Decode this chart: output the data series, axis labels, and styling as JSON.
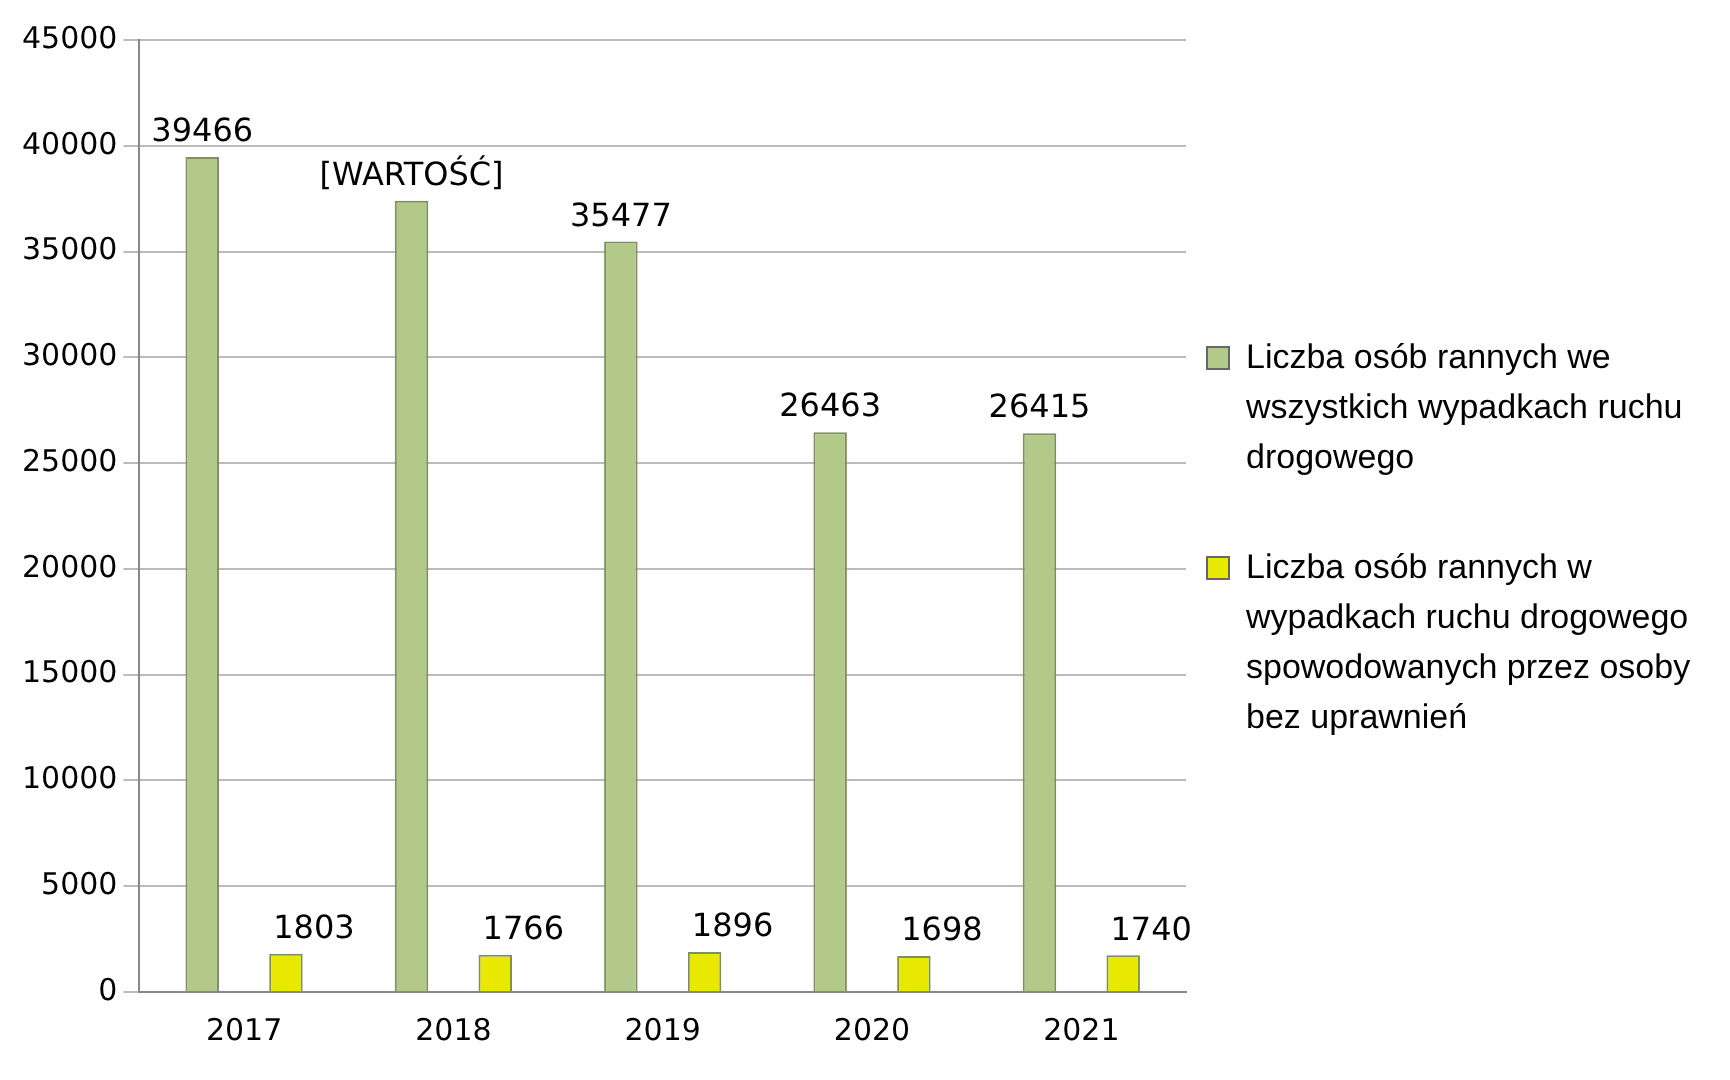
{
  "chart_data": {
    "type": "bar",
    "categories": [
      "2017",
      "2018",
      "2019",
      "2020",
      "2021"
    ],
    "series": [
      {
        "name": "Liczba osób rannych we wszystkich wypadkach ruchu drogowego",
        "color": "#b3c98a",
        "values": [
          39466,
          37400,
          35477,
          26463,
          26415
        ],
        "value_labels": [
          "39466",
          "[WARTOŚĆ]",
          "35477",
          "26463",
          "26415"
        ]
      },
      {
        "name": "Liczba osób rannych w wypadkach ruchu drogowego spowodowanych przez osoby bez uprawnień",
        "color": "#e8e800",
        "values": [
          1803,
          1766,
          1896,
          1698,
          1740
        ],
        "value_labels": [
          "1803",
          "1766",
          "1896",
          "1698",
          "1740"
        ]
      }
    ],
    "ylim": [
      0,
      45000
    ],
    "yticks": [
      0,
      5000,
      10000,
      15000,
      20000,
      25000,
      30000,
      35000,
      40000,
      45000
    ],
    "grid": "y",
    "legend": "right"
  }
}
